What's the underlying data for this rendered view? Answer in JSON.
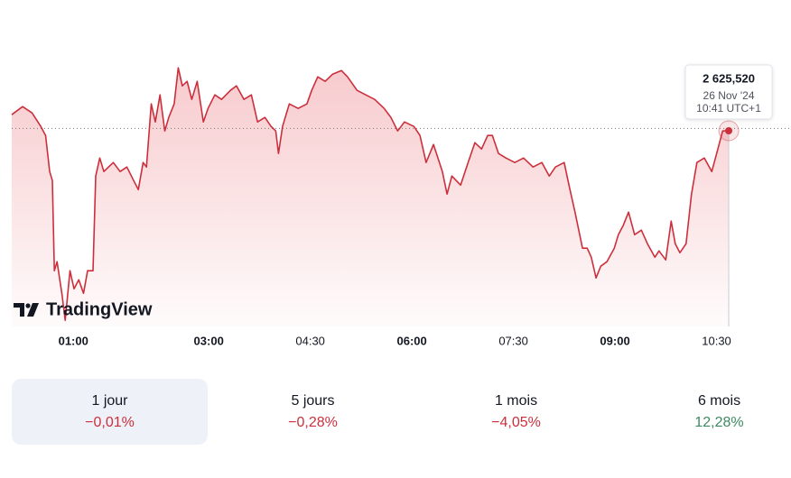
{
  "chart_data": {
    "type": "line",
    "color": "#cc2f3c",
    "x": [
      0.09,
      0.25,
      0.39,
      0.52,
      0.59,
      0.65,
      0.69,
      0.72,
      0.76,
      0.83,
      0.88,
      0.95,
      1.01,
      1.08,
      1.15,
      1.21,
      1.29,
      1.33,
      1.39,
      1.45,
      1.52,
      1.59,
      1.69,
      1.79,
      1.89,
      1.96,
      2.03,
      2.08,
      2.15,
      2.21,
      2.28,
      2.35,
      2.41,
      2.49,
      2.55,
      2.61,
      2.68,
      2.75,
      2.83,
      2.92,
      2.99,
      3.09,
      3.19,
      3.32,
      3.41,
      3.52,
      3.63,
      3.72,
      3.83,
      3.92,
      3.99,
      4.03,
      4.09,
      4.19,
      4.32,
      4.45,
      4.52,
      4.61,
      4.72,
      4.83,
      4.96,
      5.05,
      5.19,
      5.32,
      5.45,
      5.59,
      5.69,
      5.79,
      5.89,
      6.03,
      6.12,
      6.21,
      6.32,
      6.45,
      6.52,
      6.59,
      6.72,
      6.83,
      6.93,
      7.03,
      7.12,
      7.19,
      7.28,
      7.39,
      7.52,
      7.65,
      7.79,
      7.92,
      8.03,
      8.12,
      8.25,
      8.32,
      8.41,
      8.52,
      8.59,
      8.65,
      8.72,
      8.79,
      8.88,
      8.99,
      9.05,
      9.12,
      9.2,
      9.29,
      9.39,
      9.48,
      9.59,
      9.65,
      9.75,
      9.83,
      9.89,
      9.96,
      10.05,
      10.13,
      10.21,
      10.32,
      10.43,
      10.52,
      10.59,
      10.68
    ],
    "values": [
      2627.3,
      2628.2,
      2627.5,
      2626.0,
      2625.0,
      2621.0,
      2620.0,
      2610.0,
      2611.0,
      2607.5,
      2604.5,
      2610.0,
      2608.0,
      2609.0,
      2607.5,
      2610.0,
      2610.0,
      2620.5,
      2622.5,
      2621.0,
      2621.5,
      2622.0,
      2621.0,
      2621.5,
      2620.0,
      2619.0,
      2622.0,
      2621.5,
      2628.5,
      2626.5,
      2629.5,
      2625.5,
      2627.0,
      2628.5,
      2632.5,
      2630.5,
      2631.0,
      2629.0,
      2631.0,
      2626.5,
      2628.0,
      2629.5,
      2629.0,
      2630.0,
      2630.5,
      2629.0,
      2629.5,
      2626.5,
      2627.0,
      2626.0,
      2625.5,
      2623.0,
      2626.0,
      2628.5,
      2628.0,
      2628.5,
      2630.0,
      2631.5,
      2631.0,
      2631.8,
      2632.2,
      2631.5,
      2630.0,
      2629.5,
      2629.0,
      2628.0,
      2627.0,
      2625.5,
      2626.5,
      2626.0,
      2625.0,
      2622.0,
      2624.0,
      2621.0,
      2618.5,
      2620.5,
      2619.5,
      2622.0,
      2624.2,
      2623.5,
      2625.0,
      2625.0,
      2623.0,
      2622.5,
      2622.0,
      2622.5,
      2621.5,
      2622.0,
      2620.5,
      2621.5,
      2622.0,
      2619.5,
      2616.5,
      2612.5,
      2612.5,
      2611.5,
      2609.2,
      2610.5,
      2611.0,
      2612.5,
      2614.0,
      2615.0,
      2616.5,
      2614.0,
      2614.5,
      2613.0,
      2611.5,
      2612.2,
      2611.2,
      2615.5,
      2613.0,
      2612.0,
      2613.0,
      2618.5,
      2622.0,
      2622.5,
      2621.0,
      2623.5,
      2625.5,
      2625.52
    ],
    "previous_close": 2625.78,
    "xlim": [
      0.09,
      11.6
    ],
    "ylim": [
      2603.82,
      2633.82
    ],
    "xticks": [
      {
        "value": 1,
        "label": "01:00"
      },
      {
        "value": 3,
        "label": "03:00"
      },
      {
        "value": 4.5,
        "label": "04:30"
      },
      {
        "value": 6,
        "label": "06:00"
      },
      {
        "value": 7.5,
        "label": "07:30"
      },
      {
        "value": 9,
        "label": "09:00"
      },
      {
        "value": 10.5,
        "label": "10:30"
      }
    ],
    "tooltip": {
      "value_label": "2 625,520",
      "date": "26 Nov '24",
      "time": "10:41 UTC+1"
    },
    "brand": "TradingView"
  },
  "periods": [
    {
      "label": "1 jour",
      "change": "−0,01%",
      "color": "#cc2f3c",
      "active": true
    },
    {
      "label": "5 jours",
      "change": "−0,28%",
      "color": "#cc2f3c",
      "active": false
    },
    {
      "label": "1 mois",
      "change": "−4,05%",
      "color": "#cc2f3c",
      "active": false
    },
    {
      "label": "6 mois",
      "change": "12,28%",
      "color": "#3d8a5e",
      "active": false
    }
  ]
}
